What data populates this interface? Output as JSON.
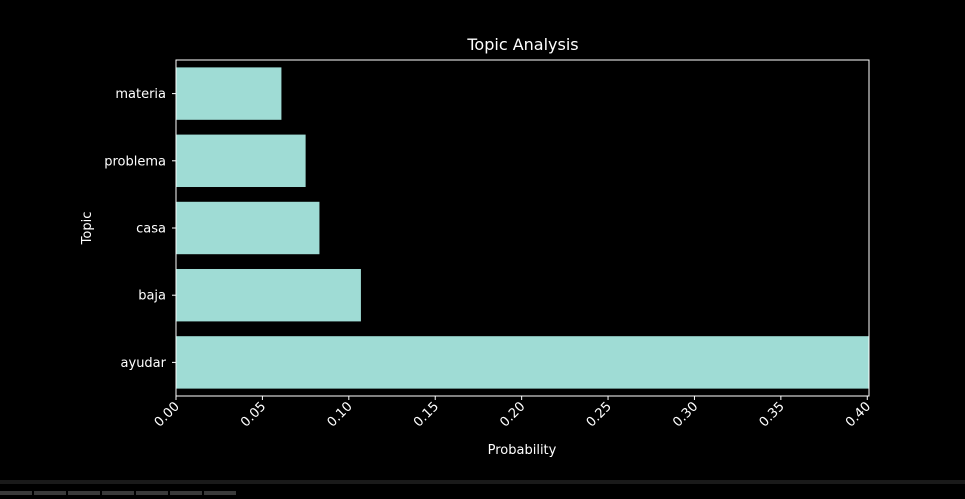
{
  "chart_data": {
    "type": "bar",
    "orientation": "horizontal",
    "title": "Topic Analysis",
    "xlabel": "Probability",
    "ylabel": "Topic",
    "categories": [
      "materia",
      "problema",
      "casa",
      "baja",
      "ayudar"
    ],
    "values": [
      0.061,
      0.075,
      0.083,
      0.107,
      0.401
    ],
    "xlim": [
      0,
      0.401
    ],
    "xticks": [
      "0.00",
      "0.05",
      "0.10",
      "0.15",
      "0.20",
      "0.25",
      "0.30",
      "0.35",
      "0.40"
    ],
    "xtick_values": [
      0,
      0.05,
      0.1,
      0.15,
      0.2,
      0.25,
      0.3,
      0.35,
      0.4
    ],
    "grid": false,
    "legend": "none",
    "bar_color": "#9fdcd5",
    "background_color": "#000000",
    "text_color": "#ffffff"
  }
}
